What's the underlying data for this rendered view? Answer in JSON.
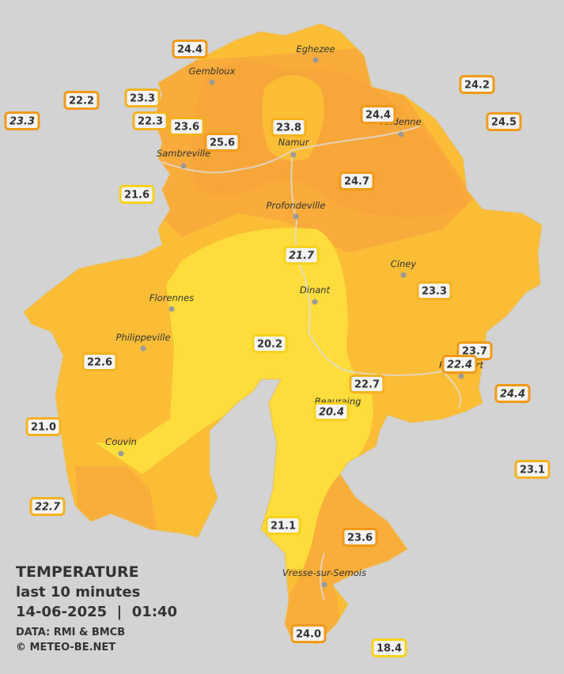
{
  "stations": [
    "24.4",
    "22.2",
    "23.3",
    "23.3",
    "22.3",
    "23.6",
    "25.6",
    "23.8",
    "24.4",
    "24.2",
    "24.5",
    "24.7",
    "21.6",
    "21.7",
    "23.3",
    "20.2",
    "22.6",
    "23.7",
    "22.4",
    "22.7",
    "24.4",
    "20.4",
    "21.0",
    "23.1",
    "22.7",
    "21.1",
    "23.6",
    "24.0",
    "18.4"
  ],
  "cities": [
    "Eghezee",
    "Gembloux",
    "Andenne",
    "Namur",
    "Sambreville",
    "Profondeville",
    "Ciney",
    "Florennes",
    "Dinant",
    "Philippeville",
    "Rochefort",
    "Beauraing",
    "Couvin",
    "Vresse-sur-Semois"
  ],
  "legend": {
    "title": "TEMPERATURE",
    "subtitle": "last 10 minutes",
    "datetime": "14-06-2025  |  01:40",
    "source": "DATA: RMI & BMCB",
    "copyright": "© METEO-BE.NET"
  }
}
